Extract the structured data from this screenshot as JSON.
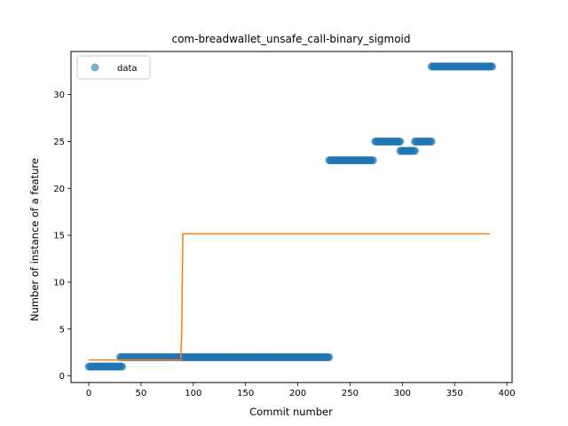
{
  "chart_data": {
    "type": "scatter",
    "title": "com-breadwallet_unsafe_call-binary_sigmoid",
    "xlabel": "Commit number",
    "ylabel": "Number of instance of a feature",
    "xlim": [
      -17,
      405
    ],
    "ylim": [
      -0.7,
      34.6
    ],
    "xticks": [
      0,
      50,
      100,
      150,
      200,
      250,
      300,
      350,
      400
    ],
    "yticks": [
      0,
      5,
      10,
      15,
      20,
      25,
      30
    ],
    "grid": false,
    "legend": {
      "placement": "upper-left",
      "entries": [
        "data"
      ]
    },
    "colors": {
      "data": "#1f77b4",
      "fit": "#ff7f0e"
    },
    "series": [
      {
        "name": "data",
        "kind": "scatter",
        "segments": [
          {
            "x_from": 0,
            "x_to": 32,
            "y": 1
          },
          {
            "x_from": 30,
            "x_to": 230,
            "y": 2
          },
          {
            "x_from": 230,
            "x_to": 272,
            "y": 23
          },
          {
            "x_from": 274,
            "x_to": 298,
            "y": 25
          },
          {
            "x_from": 298,
            "x_to": 312,
            "y": 24
          },
          {
            "x_from": 312,
            "x_to": 328,
            "y": 25
          },
          {
            "x_from": 328,
            "x_to": 386,
            "y": 33
          }
        ]
      },
      {
        "kind": "line",
        "x": [
          0,
          88,
          89,
          90,
          384
        ],
        "y": [
          1.7,
          1.7,
          5.0,
          15.15,
          15.15
        ]
      }
    ]
  }
}
